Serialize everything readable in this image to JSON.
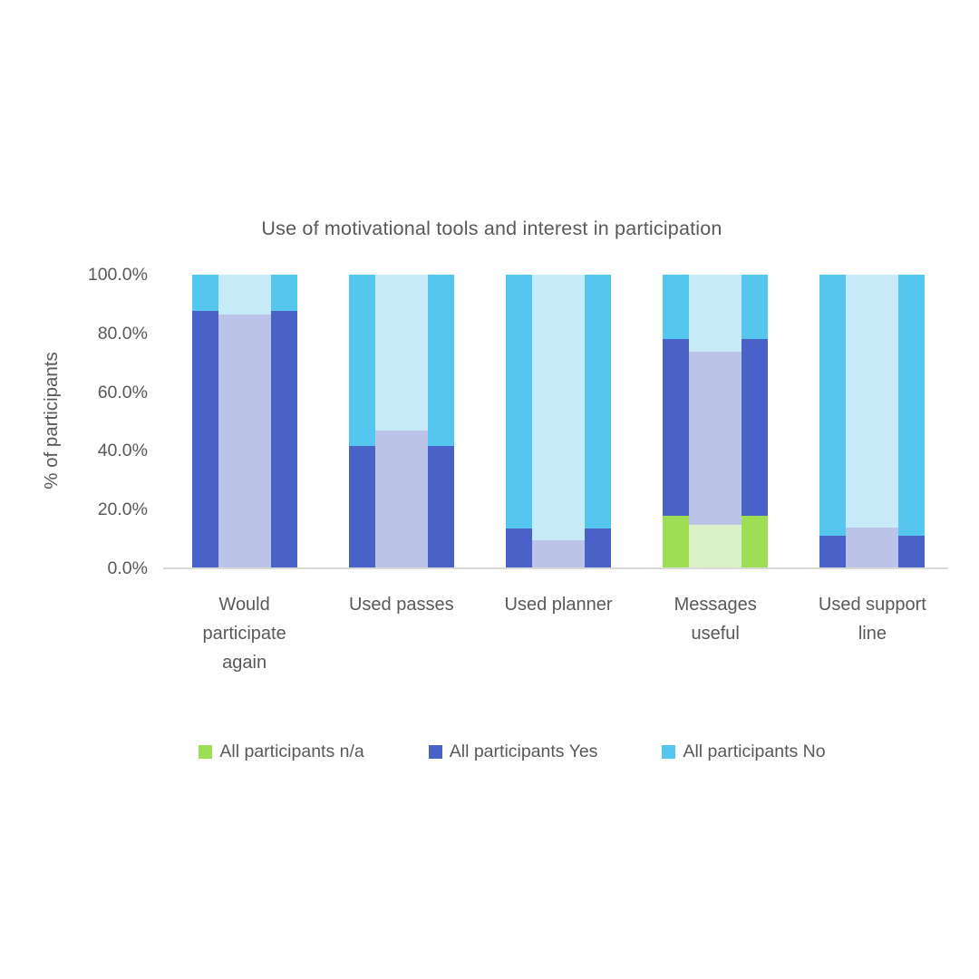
{
  "title": "Use of motivational tools and interest in participation",
  "y_axis_title": "% of participants",
  "colors": {
    "na_green": "#9dde55",
    "yes_blue": "#4a62c8",
    "no_cyan": "#55c6ed",
    "na_green_inner": "#daf2c6",
    "yes_blue_inner": "#bcc3e9",
    "no_cyan_inner": "#c6eaf8",
    "axis_line": "#d9d9d9",
    "text": "#595959"
  },
  "chart_data": {
    "type": "bar",
    "stacked": true,
    "title": "Use of motivational tools and interest in participation",
    "xlabel": "",
    "ylabel": "% of participants",
    "ylim": [
      0,
      100
    ],
    "grid": false,
    "legend_position": "bottom",
    "y_tick_labels": [
      "100.0%",
      "80.0%",
      "60.0%",
      "40.0%",
      "20.0%",
      "0.0%"
    ],
    "categories": [
      "Would participate again",
      "Used passes",
      "Used planner",
      "Messages useful",
      "Used support line"
    ],
    "series": [
      {
        "name": "All participants n/a",
        "group": "outer",
        "in_legend": true,
        "color": "#9dde55",
        "values": [
          0,
          0,
          0,
          17.9,
          0
        ]
      },
      {
        "name": "All participants Yes",
        "group": "outer",
        "in_legend": true,
        "color": "#4a62c8",
        "values": [
          87.7,
          41.7,
          13.6,
          60.2,
          11.1
        ]
      },
      {
        "name": "All participants No",
        "group": "outer",
        "in_legend": true,
        "color": "#55c6ed",
        "values": [
          12.3,
          58.3,
          86.4,
          21.9,
          88.9
        ]
      },
      {
        "name": "n/a (inner pastel overlay bar)",
        "group": "inner",
        "in_legend": false,
        "color": "#daf2c6",
        "values": [
          0,
          0,
          0,
          14.8,
          0
        ]
      },
      {
        "name": "Yes (inner pastel overlay bar)",
        "group": "inner",
        "in_legend": false,
        "color": "#bcc3e9",
        "values": [
          86.5,
          46.9,
          9.6,
          59.0,
          13.9
        ]
      },
      {
        "name": "No (inner pastel overlay bar)",
        "group": "inner",
        "in_legend": false,
        "color": "#c6eaf8",
        "values": [
          13.5,
          53.1,
          90.4,
          26.2,
          86.1
        ]
      }
    ]
  }
}
